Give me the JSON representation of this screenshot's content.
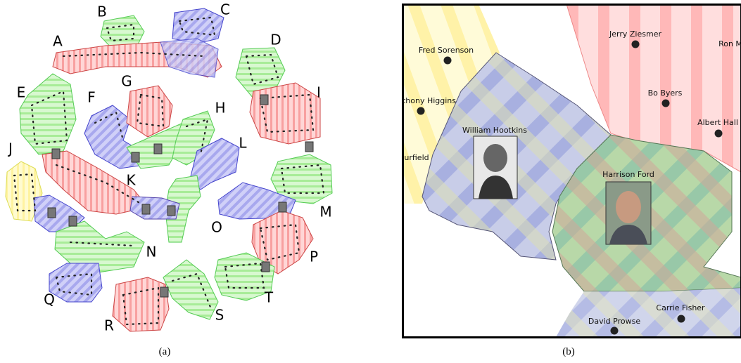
{
  "panel_a": {
    "labels": [
      "A",
      "B",
      "C",
      "D",
      "E",
      "F",
      "G",
      "H",
      "I",
      "J",
      "K",
      "L",
      "M",
      "N",
      "O",
      "P",
      "Q",
      "R",
      "S",
      "T"
    ],
    "caption": "(a)"
  },
  "panel_b": {
    "names": [
      "Jerry Ziesmer",
      "Ron M",
      "Fred Sorenson",
      "Bo Byers",
      "thony Higgins",
      "Albert Hall",
      "urfield",
      "Carrie Fisher",
      "David Prowse"
    ],
    "portraits": [
      "William Hootkins",
      "Harrison Ford"
    ],
    "caption": "(b)"
  }
}
